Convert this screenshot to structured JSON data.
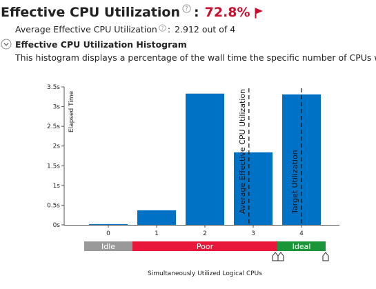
{
  "header": {
    "title": "Effective CPU Utilization",
    "colon": ":",
    "value": "72.8%",
    "help_icon": "help-circle-icon",
    "flag_icon": "red-flag-icon",
    "flag_color": "#c8102e"
  },
  "average": {
    "label": "Average Effective CPU Utilization",
    "colon": ":",
    "value": "2.912 out of 4",
    "help_icon": "help-circle-icon"
  },
  "section": {
    "title": "Effective CPU Utilization Histogram",
    "collapse_icon": "collapse-chevron-icon",
    "description": "This histogram displays a percentage of the wall time the specific number of CPUs we"
  },
  "chart_data": {
    "type": "bar",
    "categories": [
      "0",
      "1",
      "2",
      "3",
      "4"
    ],
    "values": [
      0.02,
      0.37,
      3.33,
      1.84,
      3.31
    ],
    "bar_color": "#0072c6",
    "ylabel": "Elapsed Time",
    "xlabel": "Simultaneously Utilized Logical CPUs",
    "ylim": [
      0,
      3.5
    ],
    "yticks": [
      "0s",
      "0.5s",
      "1s",
      "1.5s",
      "2s",
      "2.5s",
      "3s",
      "3.5s"
    ],
    "ytick_values": [
      0,
      0.5,
      1,
      1.5,
      2,
      2.5,
      3,
      3.5
    ],
    "markers": [
      {
        "label": "Average Effective CPU Utilization",
        "x": 2.912
      },
      {
        "label": "Target Utilization",
        "x": 4
      }
    ],
    "bands": [
      {
        "label": "Idle",
        "from": -0.5,
        "to": 0.5,
        "color": "#999999"
      },
      {
        "label": "Poor",
        "from": 0.5,
        "to": 3.5,
        "color": "#e8173c"
      },
      {
        "label": "Ideal",
        "from": 3.5,
        "to": 4.5,
        "color": "#1a9638"
      }
    ]
  }
}
